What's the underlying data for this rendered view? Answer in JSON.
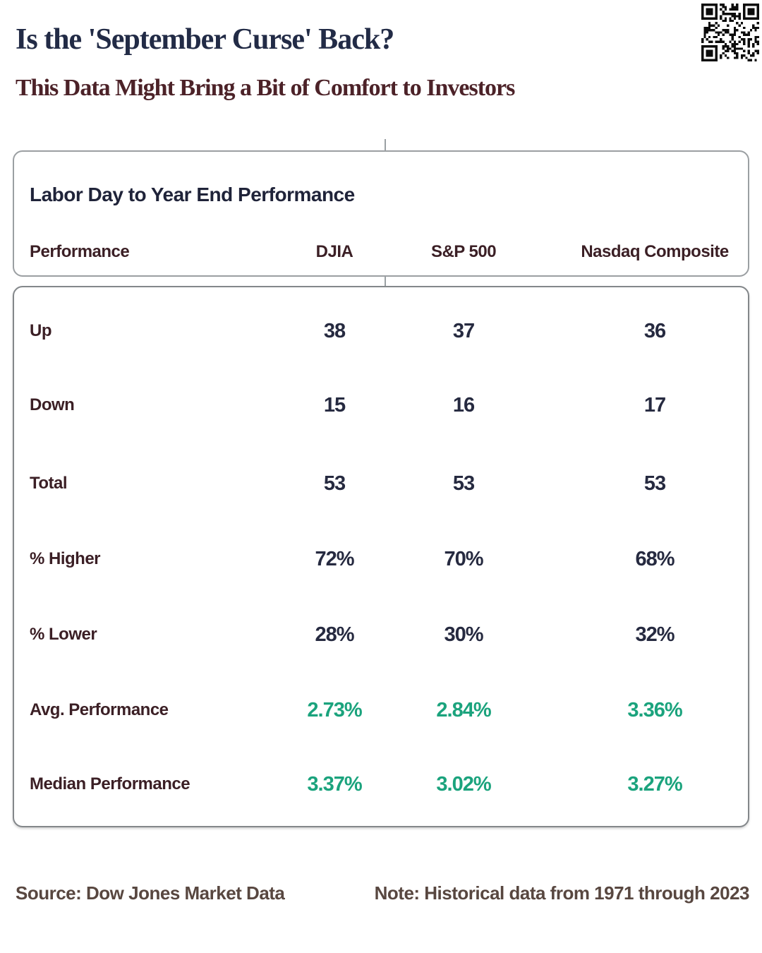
{
  "page": {
    "title": "Is the 'September Curse' Back?",
    "subtitle": "This Data Might Bring a Bit of Comfort to Investors"
  },
  "table": {
    "title": "Labor Day to Year End Performance",
    "columns": [
      "Performance",
      "DJIA",
      "S&P 500",
      "Nasdaq Composite"
    ],
    "rows": [
      {
        "label": "Up",
        "values": [
          "38",
          "37",
          "36"
        ],
        "highlight": false
      },
      {
        "label": "Down",
        "values": [
          "15",
          "16",
          "17"
        ],
        "highlight": false
      },
      {
        "label": "Total",
        "values": [
          "53",
          "53",
          "53"
        ],
        "highlight": false
      },
      {
        "label": "% Higher",
        "values": [
          "72%",
          "70%",
          "68%"
        ],
        "highlight": false
      },
      {
        "label": "% Lower",
        "values": [
          "28%",
          "30%",
          "32%"
        ],
        "highlight": false
      },
      {
        "label": "Avg. Performance",
        "values": [
          "2.73%",
          "2.84%",
          "3.36%"
        ],
        "highlight": true
      },
      {
        "label": "Median Performance",
        "values": [
          "3.37%",
          "3.02%",
          "3.27%"
        ],
        "highlight": true
      }
    ]
  },
  "chart_data": {
    "type": "table",
    "title": "Labor Day to Year End Performance",
    "columns": [
      "Performance",
      "DJIA",
      "S&P 500",
      "Nasdaq Composite"
    ],
    "rows": [
      [
        "Up",
        38,
        37,
        36
      ],
      [
        "Down",
        15,
        16,
        17
      ],
      [
        "Total",
        53,
        53,
        53
      ],
      [
        "% Higher",
        "72%",
        "70%",
        "68%"
      ],
      [
        "% Lower",
        "28%",
        "30%",
        "32%"
      ],
      [
        "Avg. Performance",
        "2.73%",
        "2.84%",
        "3.36%"
      ],
      [
        "Median Performance",
        "3.37%",
        "3.02%",
        "3.27%"
      ]
    ]
  },
  "footer": {
    "source": "Source: Dow Jones Market Data",
    "note": "Note: Historical data from 1971 through 2023"
  },
  "colors": {
    "positive_green": "#1ba37d",
    "value_navy": "#262a40",
    "label_maroon": "#3b1f25",
    "title_navy": "#222b46",
    "subtitle_maroon": "#4c2228",
    "footer_brown": "#584740"
  },
  "icons": {
    "qr_code": "qr-code"
  }
}
